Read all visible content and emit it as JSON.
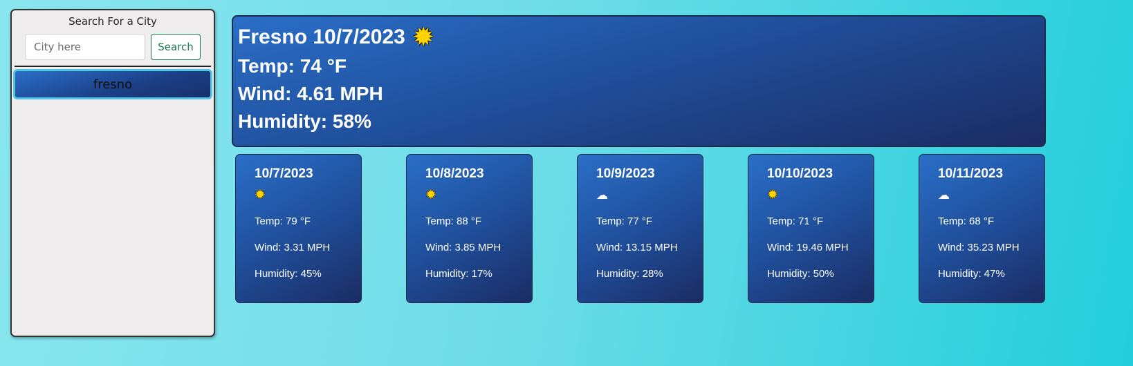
{
  "sidebar": {
    "title": "Search For a City",
    "input_placeholder": "City here",
    "search_label": "Search",
    "history": [
      "fresno"
    ]
  },
  "current": {
    "title": "Fresno 10/7/2023",
    "icon": "sun-icon",
    "temp": "Temp: 74 °F",
    "wind": "Wind: 4.61 MPH",
    "humidity": "Humidity: 58%"
  },
  "forecast": [
    {
      "date": "10/7/2023",
      "icon": "sun-icon",
      "glyph": "☀",
      "temp": "Temp: 79 °F",
      "wind": "Wind: 3.31 MPH",
      "humidity": "Humidity: 45%"
    },
    {
      "date": "10/8/2023",
      "icon": "sun-icon",
      "glyph": "☀",
      "temp": "Temp: 88 °F",
      "wind": "Wind: 3.85 MPH",
      "humidity": "Humidity: 17%"
    },
    {
      "date": "10/9/2023",
      "icon": "cloud-icon",
      "glyph": "☁",
      "temp": "Temp: 77 °F",
      "wind": "Wind: 13.15 MPH",
      "humidity": "Humidity: 28%"
    },
    {
      "date": "10/10/2023",
      "icon": "sun-icon",
      "glyph": "☀",
      "temp": "Temp: 71 °F",
      "wind": "Wind: 19.46 MPH",
      "humidity": "Humidity: 50%"
    },
    {
      "date": "10/11/2023",
      "icon": "cloud-icon",
      "glyph": "☁",
      "temp": "Temp: 68 °F",
      "wind": "Wind: 35.23 MPH",
      "humidity": "Humidity: 47%"
    }
  ],
  "colors": {
    "card_gradient_start": "#2a6fc8",
    "card_gradient_end": "#1c2c63",
    "sun": "#ffd400",
    "search_button": "#1d7a4e",
    "history_border": "#4fc6e6"
  }
}
